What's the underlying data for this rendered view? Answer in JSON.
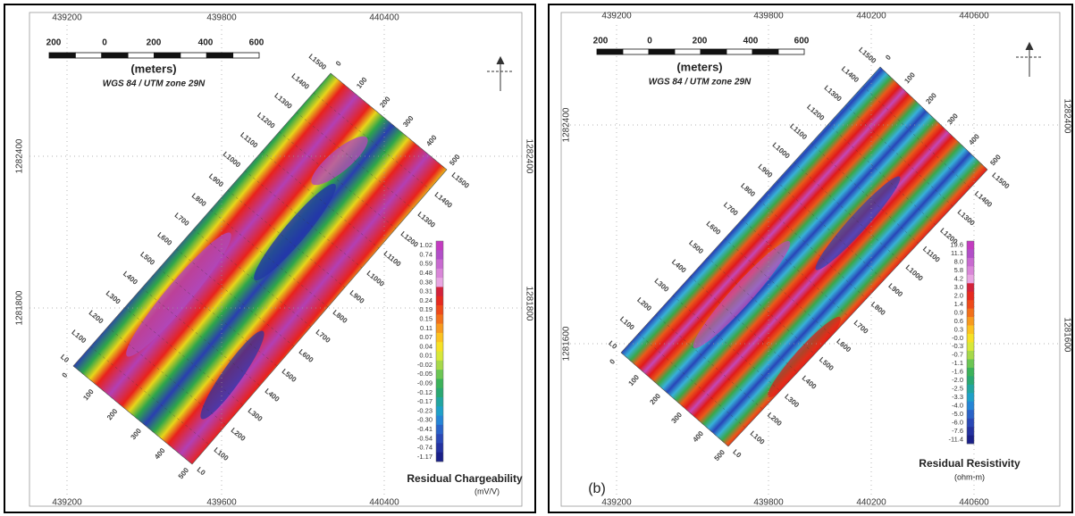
{
  "panels": [
    {
      "top_x_labels": [
        "439200",
        "439800",
        "440400"
      ],
      "bottom_x_labels": [
        "439200",
        "439600",
        "440400"
      ],
      "left_y_labels": [
        "1282400",
        "1281800"
      ],
      "right_y_labels": [
        "1282400",
        "1281800"
      ],
      "scale_labels": [
        "200",
        "0",
        "200",
        "400",
        "600"
      ],
      "scale_unit": "(meters)",
      "projection": "WGS 84 / UTM zone 29N",
      "line_labels_nw": [
        "L0",
        "L100",
        "L200",
        "L300",
        "L400",
        "L500",
        "L600",
        "L700",
        "L800",
        "L900",
        "L1000",
        "L1100",
        "L1200",
        "L1300",
        "L1400",
        "L1500"
      ],
      "line_labels_se": [
        "L0",
        "L100",
        "L200",
        "L300",
        "L400",
        "L500",
        "L600",
        "L700",
        "L800",
        "L900",
        "L1000",
        "L1100",
        "L1200",
        "L1300",
        "L1400",
        "L1500"
      ],
      "station_labels_ne": [
        "0",
        "100",
        "200",
        "300",
        "400",
        "500"
      ],
      "station_labels_sw": [
        "0",
        "100",
        "200",
        "300",
        "400",
        "500"
      ],
      "legend_values": [
        "1.02",
        "0.74",
        "0.59",
        "0.48",
        "0.38",
        "0.31",
        "0.24",
        "0.19",
        "0.15",
        "0.11",
        "0.07",
        "0.04",
        "0.01",
        "-0.02",
        "-0.05",
        "-0.09",
        "-0.12",
        "-0.17",
        "-0.23",
        "-0.30",
        "-0.41",
        "-0.54",
        "-0.74",
        "-1.17"
      ],
      "legend_title": "Residual Chargeability",
      "legend_unit": "(mV/V)"
    },
    {
      "top_x_labels": [
        "439200",
        "439800",
        "440200",
        "440600"
      ],
      "bottom_x_labels": [
        "439200",
        "439800",
        "440200",
        "440600"
      ],
      "left_y_labels": [
        "1282400",
        "1281600"
      ],
      "right_y_labels": [
        "1282400",
        "1281600"
      ],
      "scale_labels": [
        "200",
        "0",
        "200",
        "400",
        "600"
      ],
      "scale_unit": "(meters)",
      "projection": "WGS 84 / UTM zone 29N",
      "line_labels_nw": [
        "L0",
        "L100",
        "L200",
        "L300",
        "L400",
        "L500",
        "L600",
        "L700",
        "L800",
        "L900",
        "L1000",
        "L1100",
        "L1200",
        "L1300",
        "L1400",
        "L1500"
      ],
      "line_labels_se": [
        "L0",
        "L100",
        "L200",
        "L300",
        "L400",
        "L500",
        "L600",
        "L700",
        "L800",
        "L900",
        "L1000",
        "L1100",
        "L1200",
        "L1300",
        "L1400",
        "L1500"
      ],
      "station_labels_ne": [
        "0",
        "100",
        "200",
        "300",
        "400",
        "500"
      ],
      "station_labels_sw": [
        "0",
        "100",
        "200",
        "300",
        "400",
        "500"
      ],
      "legend_values": [
        "19.6",
        "11.1",
        "8.0",
        "5.8",
        "4.2",
        "3.0",
        "2.0",
        "1.4",
        "0.9",
        "0.6",
        "0.3",
        "-0.0",
        "-0.3",
        "-0.7",
        "-1.1",
        "-1.6",
        "-2.0",
        "-2.5",
        "-3.3",
        "-4.0",
        "-5.0",
        "-6.0",
        "-7.6",
        "-11.4"
      ],
      "legend_title": "Residual Resistivity",
      "legend_unit": "(ohm-m)",
      "panel_label": "(b)"
    }
  ]
}
